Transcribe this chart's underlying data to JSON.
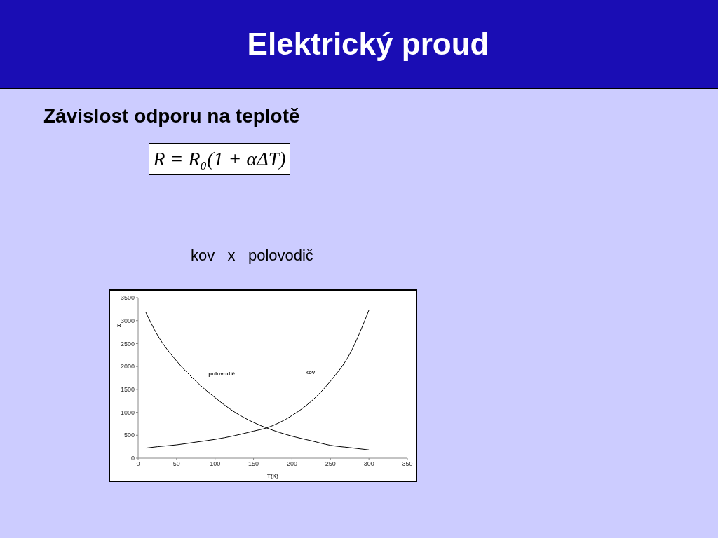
{
  "chart_data": {
    "type": "line",
    "title": "Elektrický proud",
    "subtitle": "Závislost odporu na teplotě",
    "annotations": [
      "R = R₀(1 + αΔT)",
      "kov   x   polovodič"
    ],
    "xlabel": "T(K)",
    "ylabel": "R",
    "x": [
      10,
      25,
      50,
      75,
      100,
      125,
      150,
      167,
      200,
      225,
      250,
      275,
      300
    ],
    "series": [
      {
        "name": "polovodič",
        "color": "#000000",
        "values": [
          3180,
          2690,
          2120,
          1680,
          1320,
          1010,
          780,
          660,
          480,
          380,
          280,
          230,
          180
        ]
      },
      {
        "name": "kov",
        "color": "#000000",
        "values": [
          220,
          250,
          290,
          350,
          410,
          490,
          590,
          660,
          930,
          1240,
          1680,
          2270,
          3230
        ]
      }
    ],
    "xlim": [
      0,
      350
    ],
    "xticks": [
      0,
      50,
      100,
      150,
      200,
      250,
      300,
      350
    ],
    "ylim": [
      0,
      3500
    ],
    "yticks": [
      0,
      500,
      1000,
      1500,
      2000,
      2500,
      3000,
      3500
    ],
    "grid": false,
    "legend": false,
    "marker": "none",
    "line_style": "solid"
  }
}
